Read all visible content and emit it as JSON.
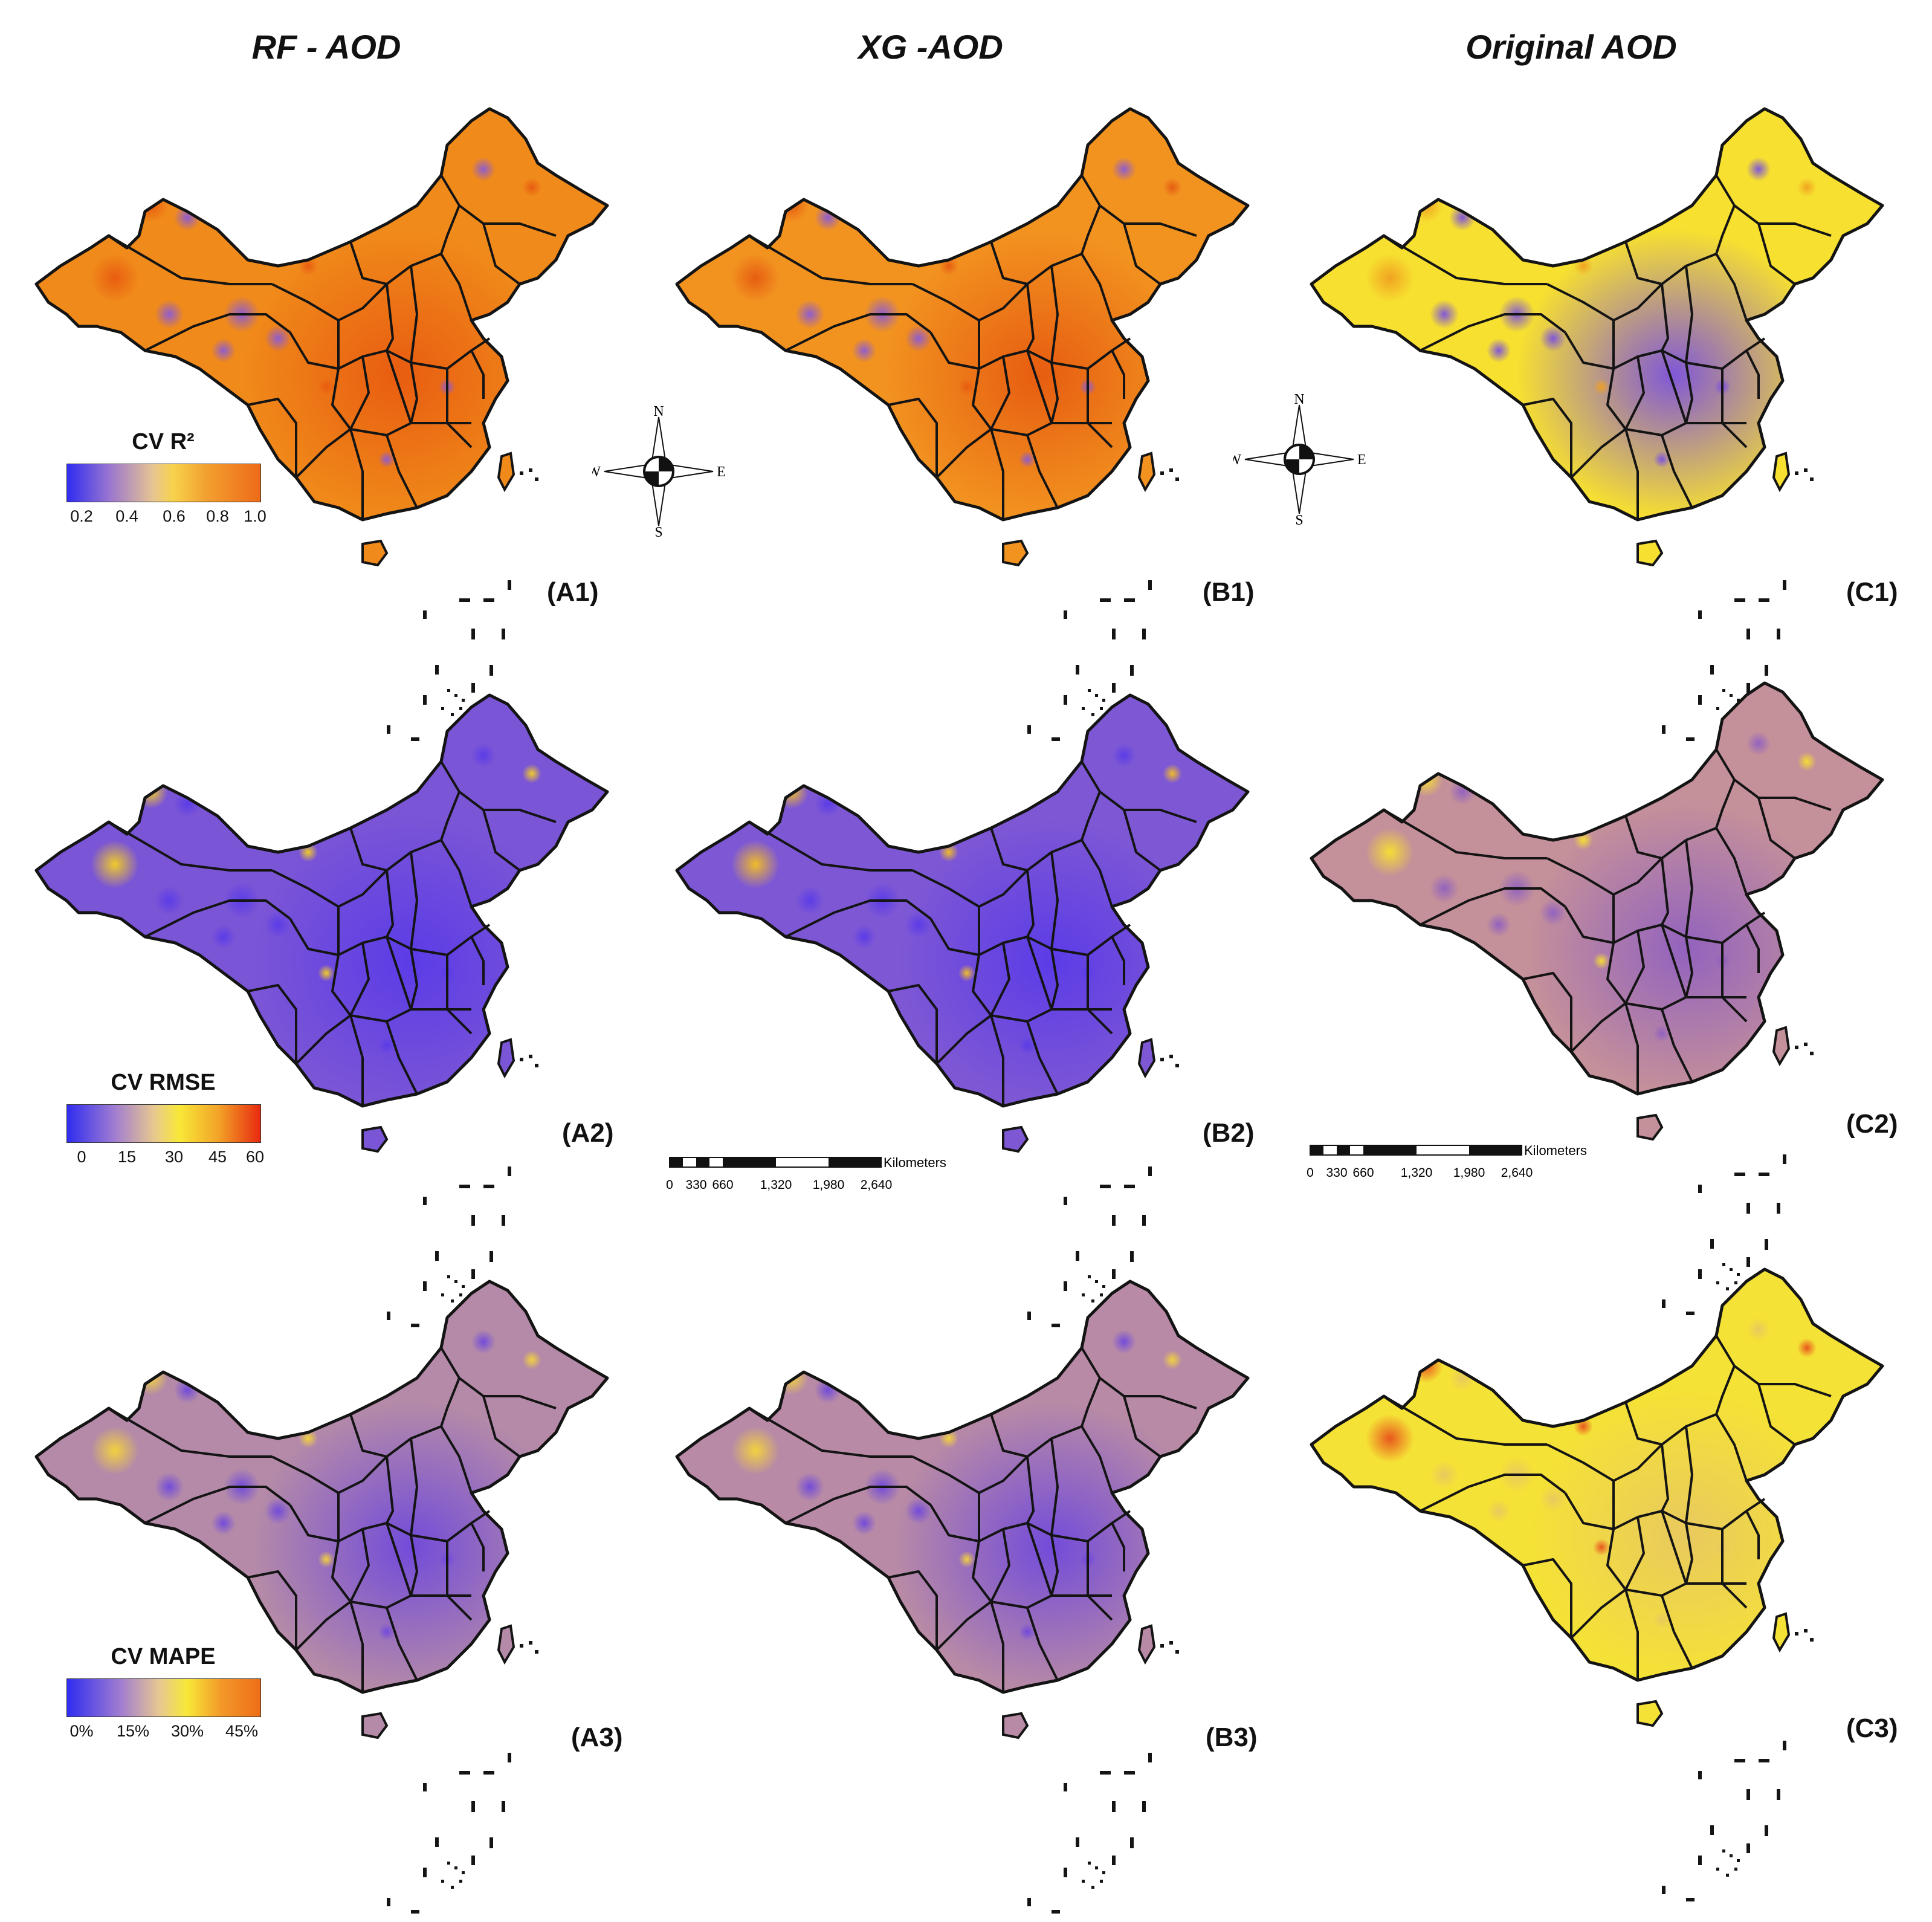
{
  "columns": [
    {
      "title": "RF - AOD"
    },
    {
      "title": "XG -AOD"
    },
    {
      "title": "Original AOD"
    }
  ],
  "panels": [
    {
      "label": "(A1)",
      "metric": "r2",
      "fill": "#f08a1a",
      "hot": "#e85a10",
      "cool": "#8a5ad8"
    },
    {
      "label": "(B1)",
      "metric": "r2",
      "fill": "#f29320",
      "hot": "#e65a10",
      "cool": "#8a5ad8"
    },
    {
      "label": "(C1)",
      "metric": "r2",
      "fill": "#f7e030",
      "hot": "#f0a020",
      "cool": "#7a50e0"
    },
    {
      "label": "(A2)",
      "metric": "rmse",
      "fill": "#7a55d6",
      "hot": "#f6d020",
      "cool": "#5a3ae8"
    },
    {
      "label": "(B2)",
      "metric": "rmse",
      "fill": "#7e58d4",
      "hot": "#f6c020",
      "cool": "#5a3ae8"
    },
    {
      "label": "(C2)",
      "metric": "rmse",
      "fill": "#c4909a",
      "hot": "#f8e030",
      "cool": "#9060c0"
    },
    {
      "label": "(A3)",
      "metric": "mape",
      "fill": "#b48aa8",
      "hot": "#f5d53a",
      "cool": "#6f48dc"
    },
    {
      "label": "(B3)",
      "metric": "mape",
      "fill": "#b88aa6",
      "hot": "#f5d53a",
      "cool": "#6f48dc"
    },
    {
      "label": "(C3)",
      "metric": "mape",
      "fill": "#f5e236",
      "hot": "#e8501c",
      "cool": "#e8c860"
    }
  ],
  "legends": {
    "r2": {
      "title": "CV R²",
      "ticks": [
        "0.2",
        "0.4",
        "0.6",
        "0.8",
        "1.0"
      ]
    },
    "rmse": {
      "title": "CV RMSE",
      "ticks": [
        "0",
        "15",
        "30",
        "45",
        "60"
      ]
    },
    "mape": {
      "title": "CV MAPE",
      "ticks": [
        "0%",
        "15%",
        "30%",
        "45%"
      ]
    }
  },
  "colors": {
    "ramp_low": "#2f2cf0",
    "ramp_mid_low": "#b88fb0",
    "ramp_mid": "#f8e838",
    "ramp_high": "#f07d18",
    "ramp_top": "#e8200c",
    "border": "#141414"
  },
  "compass": {
    "n": "N",
    "s": "S",
    "e": "E",
    "w": "W"
  },
  "scalebar": {
    "unit": "Kilometers",
    "ticks": [
      "0",
      "330",
      "660",
      "1,320",
      "1,980",
      "2,640"
    ]
  }
}
